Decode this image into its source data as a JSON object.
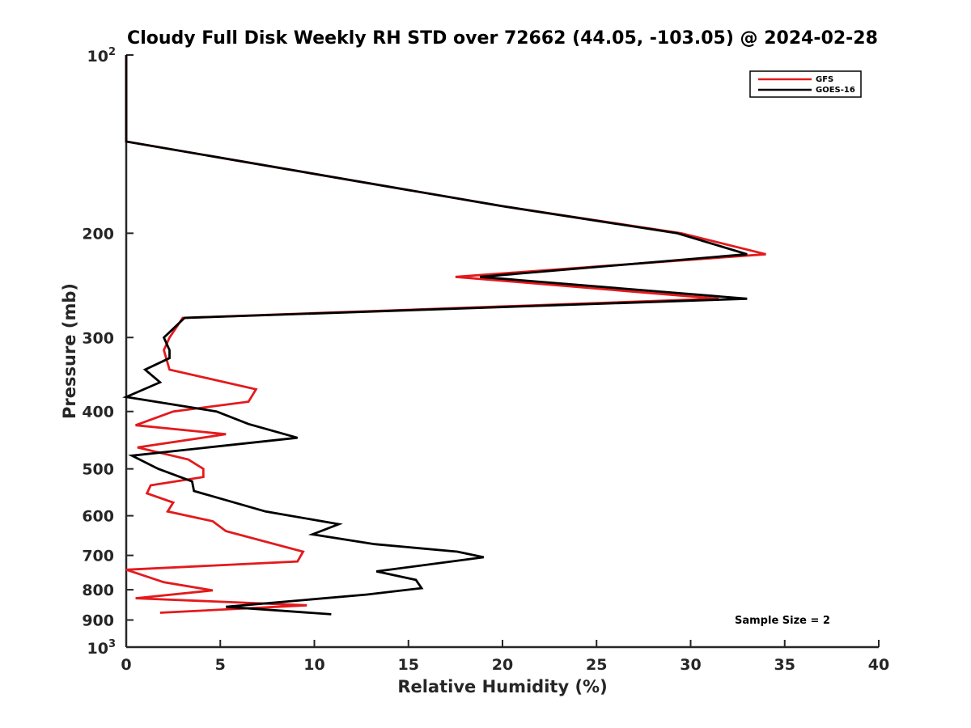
{
  "chart_data": {
    "type": "line",
    "title": "Cloudy Full Disk Weekly RH STD over 72662 (44.05, -103.05) @ 2024-02-28",
    "xlabel": "Relative Humidity (%)",
    "ylabel": "Pressure (mb)",
    "xlim": [
      0,
      40
    ],
    "ylim": [
      100,
      1000
    ],
    "y_scale": "log",
    "y_reversed": true,
    "grid": false,
    "legend_position": "top-right",
    "x_ticks": [
      0,
      5,
      10,
      15,
      20,
      25,
      30,
      35,
      40
    ],
    "x_tick_labels": [
      "0",
      "5",
      "10",
      "15",
      "20",
      "25",
      "30",
      "35",
      "40"
    ],
    "y_ticks": [
      200,
      300,
      400,
      500,
      600,
      700,
      800,
      900
    ],
    "y_tick_labels": [
      "200",
      "300",
      "400",
      "500",
      "600",
      "700",
      "800",
      "900"
    ],
    "y_extreme_labels": {
      "top": {
        "base": "10",
        "exp": "2",
        "value": 100
      },
      "bottom": {
        "base": "10",
        "exp": "3",
        "value": 1000
      }
    },
    "annotation": "Sample Size = 2",
    "series": [
      {
        "name": "GFS",
        "color": "#e31a1c",
        "x": [
          0,
          0,
          0,
          20,
          29.5,
          34,
          17.5,
          31.5,
          3,
          2.3,
          2,
          2.3,
          6.9,
          6.5,
          2.5,
          0.5,
          5.3,
          0.6,
          3.3,
          4.1,
          4.1,
          1.3,
          1.1,
          2.5,
          2.2,
          4.6,
          5.3,
          9.4,
          9.1,
          0,
          2,
          4.6,
          0.5,
          9.6,
          1.8
        ],
        "y": [
          100,
          105,
          140,
          180,
          200,
          217,
          237,
          258,
          278,
          300,
          315,
          340,
          367,
          385,
          400,
          422,
          437,
          460,
          482,
          500,
          516,
          533,
          550,
          570,
          590,
          613,
          637,
          690,
          717,
          740,
          777,
          802,
          827,
          850,
          875
        ]
      },
      {
        "name": "GOES-16",
        "color": "#000000",
        "x": [
          0,
          0,
          0,
          20,
          29.3,
          33,
          18.8,
          33,
          3.1,
          2,
          2.3,
          2.3,
          1,
          1.8,
          0,
          4.8,
          6.5,
          9.1,
          0.3,
          1.7,
          3.5,
          3.6,
          7.4,
          11.3,
          9.9,
          13.2,
          17.6,
          19,
          13.3,
          15.4,
          15.7,
          12.8,
          5.3,
          10.9
        ],
        "y": [
          100,
          105,
          140,
          180,
          200,
          217,
          237,
          258,
          278,
          300,
          315,
          325,
          340,
          357,
          378,
          400,
          420,
          443,
          475,
          500,
          525,
          545,
          590,
          620,
          645,
          670,
          690,
          705,
          745,
          770,
          795,
          815,
          855,
          880
        ]
      }
    ]
  }
}
